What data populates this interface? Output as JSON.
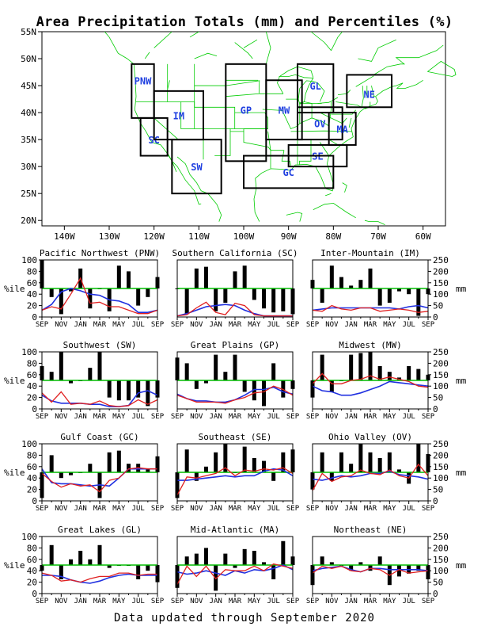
{
  "title": "Area Precipitation Totals (mm) and Percentiles (%)",
  "footer": "Data updated through September 2020",
  "map": {
    "lat_ticks": [
      "55N",
      "50N",
      "45N",
      "40N",
      "35N",
      "30N",
      "25N",
      "20N"
    ],
    "lon_ticks": [
      "140W",
      "130W",
      "120W",
      "110W",
      "100W",
      "90W",
      "80W",
      "70W",
      "60W"
    ],
    "regions": [
      {
        "code": "PNW",
        "lonmin": -125,
        "lonmax": -120,
        "latmin": 39,
        "latmax": 49,
        "lablon": -122.5,
        "lablat": 46
      },
      {
        "code": "SC",
        "lonmin": -123,
        "lonmax": -117,
        "latmin": 32,
        "latmax": 39,
        "lablon": -120,
        "lablat": 35
      },
      {
        "code": "IM",
        "lonmin": -120,
        "lonmax": -109,
        "latmin": 35,
        "latmax": 44,
        "lablon": -114.5,
        "lablat": 39.5
      },
      {
        "code": "SW",
        "lonmin": -116,
        "lonmax": -105,
        "latmin": 25,
        "latmax": 35,
        "lablon": -110.5,
        "lablat": 30
      },
      {
        "code": "GP",
        "lonmin": -104,
        "lonmax": -95,
        "latmin": 31,
        "latmax": 49,
        "lablon": -99.5,
        "lablat": 40.5
      },
      {
        "code": "MW",
        "lonmin": -95,
        "lonmax": -87,
        "latmin": 35,
        "latmax": 46,
        "lablon": -91,
        "lablat": 40.5
      },
      {
        "code": "GL",
        "lonmin": -88,
        "lonmax": -80,
        "latmin": 40,
        "latmax": 49,
        "lablon": -84,
        "lablat": 45
      },
      {
        "code": "NE",
        "lonmin": -77,
        "lonmax": -67,
        "latmin": 41,
        "latmax": 47,
        "lablon": -72,
        "lablat": 43.5
      },
      {
        "code": "OV",
        "lonmin": -88,
        "lonmax": -78,
        "latmin": 35,
        "latmax": 41,
        "lablon": -83,
        "lablat": 38
      },
      {
        "code": "MA",
        "lonmin": -81,
        "lonmax": -75,
        "latmin": 34,
        "latmax": 40,
        "lablon": -78,
        "lablat": 37
      },
      {
        "code": "SE",
        "lonmin": -90,
        "lonmax": -77,
        "latmin": 30,
        "latmax": 34,
        "lablon": -83.5,
        "lablat": 32
      },
      {
        "code": "GC",
        "lonmin": -100,
        "lonmax": -80,
        "latmin": 26,
        "latmax": 32,
        "lablon": -90,
        "lablat": 29
      }
    ]
  },
  "axes": {
    "left_label": "%ile",
    "right_label": "mm",
    "pct_ticks": [
      "0",
      "20",
      "40",
      "60",
      "80",
      "100"
    ],
    "mm_ticks": [
      "0",
      "50",
      "100",
      "150",
      "200",
      "250"
    ],
    "month_ticks": [
      "SEP",
      "NOV",
      "JAN",
      "MAR",
      "MAY",
      "JUL",
      "SEP"
    ]
  },
  "colors": {
    "bars": "#000000",
    "percentile_line": "#2030e0",
    "total_line": "#e02020",
    "median_line": "#00bb00",
    "map_lines": "#00cc00",
    "region_labels": "#2040e0"
  },
  "chart_data": [
    {
      "type": "bar",
      "title": "Pacific Northwest (PNW)",
      "pct_range": [
        0,
        100
      ],
      "mm_range": [
        0,
        250
      ],
      "x": [
        "SEP",
        "OCT",
        "NOV",
        "DEC",
        "JAN",
        "FEB",
        "MAR",
        "APR",
        "MAY",
        "JUN",
        "JUL",
        "AUG",
        "SEP"
      ],
      "percentiles": [
        100,
        35,
        5,
        45,
        85,
        15,
        50,
        10,
        90,
        80,
        20,
        35,
        70
      ],
      "totals_mm": [
        30,
        45,
        35,
        100,
        170,
        60,
        65,
        45,
        45,
        30,
        15,
        15,
        30
      ],
      "normal_mm": [
        30,
        55,
        110,
        125,
        115,
        100,
        95,
        75,
        70,
        55,
        20,
        20,
        30
      ]
    },
    {
      "type": "bar",
      "title": "Southern California (SC)",
      "pct_range": [
        0,
        100
      ],
      "mm_range": [
        0,
        250
      ],
      "x": [
        "SEP",
        "OCT",
        "NOV",
        "DEC",
        "JAN",
        "FEB",
        "MAR",
        "APR",
        "MAY",
        "JUN",
        "JUL",
        "AUG",
        "SEP"
      ],
      "percentiles": [
        50,
        5,
        85,
        88,
        10,
        25,
        80,
        90,
        30,
        15,
        8,
        10,
        5
      ],
      "totals_mm": [
        5,
        10,
        40,
        65,
        20,
        10,
        60,
        50,
        10,
        5,
        5,
        5,
        5
      ],
      "normal_mm": [
        5,
        15,
        30,
        45,
        50,
        55,
        50,
        30,
        15,
        5,
        5,
        5,
        5
      ]
    },
    {
      "type": "bar",
      "title": "Inter-Mountain (IM)",
      "pct_range": [
        0,
        100
      ],
      "mm_range": [
        0,
        250
      ],
      "x": [
        "SEP",
        "OCT",
        "NOV",
        "DEC",
        "JAN",
        "FEB",
        "MAR",
        "APR",
        "MAY",
        "JUN",
        "JUL",
        "AUG",
        "SEP"
      ],
      "percentiles": [
        65,
        25,
        90,
        70,
        55,
        65,
        85,
        20,
        25,
        45,
        40,
        2,
        40
      ],
      "totals_mm": [
        30,
        25,
        50,
        35,
        30,
        40,
        40,
        25,
        30,
        35,
        30,
        20,
        25
      ],
      "normal_mm": [
        30,
        35,
        40,
        40,
        40,
        40,
        40,
        40,
        40,
        35,
        45,
        50,
        40
      ]
    },
    {
      "type": "bar",
      "title": "Southwest (SW)",
      "pct_range": [
        0,
        100
      ],
      "mm_range": [
        0,
        250
      ],
      "x": [
        "SEP",
        "OCT",
        "NOV",
        "DEC",
        "JAN",
        "FEB",
        "MAR",
        "APR",
        "MAY",
        "JUN",
        "JUL",
        "AUG",
        "SEP"
      ],
      "percentiles": [
        75,
        65,
        100,
        45,
        50,
        72,
        100,
        20,
        15,
        15,
        20,
        5,
        20
      ],
      "totals_mm": [
        70,
        30,
        75,
        20,
        25,
        20,
        35,
        15,
        10,
        15,
        40,
        20,
        40
      ],
      "normal_mm": [
        60,
        35,
        25,
        25,
        25,
        20,
        20,
        10,
        10,
        15,
        70,
        80,
        60
      ]
    },
    {
      "type": "bar",
      "title": "Great Plains (GP)",
      "pct_range": [
        0,
        100
      ],
      "mm_range": [
        0,
        250
      ],
      "x": [
        "SEP",
        "OCT",
        "NOV",
        "DEC",
        "JAN",
        "FEB",
        "MAR",
        "APR",
        "MAY",
        "JUN",
        "JUL",
        "AUG",
        "SEP"
      ],
      "percentiles": [
        90,
        80,
        35,
        45,
        95,
        65,
        95,
        30,
        15,
        5,
        80,
        20,
        35
      ],
      "totals_mm": [
        60,
        45,
        30,
        30,
        30,
        25,
        40,
        50,
        70,
        75,
        100,
        85,
        60
      ],
      "normal_mm": [
        65,
        45,
        35,
        35,
        30,
        30,
        40,
        60,
        85,
        85,
        95,
        75,
        65
      ]
    },
    {
      "type": "bar",
      "title": "Midwest (MW)",
      "pct_range": [
        0,
        100
      ],
      "mm_range": [
        0,
        250
      ],
      "x": [
        "SEP",
        "OCT",
        "NOV",
        "DEC",
        "JAN",
        "FEB",
        "MAR",
        "APR",
        "MAY",
        "JUN",
        "JUL",
        "AUG",
        "SEP"
      ],
      "percentiles": [
        20,
        95,
        30,
        50,
        95,
        98,
        100,
        75,
        65,
        55,
        75,
        70,
        60
      ],
      "totals_mm": [
        110,
        155,
        110,
        110,
        125,
        130,
        145,
        130,
        140,
        130,
        120,
        100,
        95
      ],
      "normal_mm": [
        100,
        80,
        75,
        60,
        60,
        70,
        85,
        100,
        120,
        115,
        110,
        105,
        100
      ]
    },
    {
      "type": "bar",
      "title": "Gulf Coast (GC)",
      "pct_range": [
        0,
        100
      ],
      "mm_range": [
        0,
        250
      ],
      "x": [
        "SEP",
        "OCT",
        "NOV",
        "DEC",
        "JAN",
        "FEB",
        "MAR",
        "APR",
        "MAY",
        "JUN",
        "JUL",
        "AUG",
        "SEP"
      ],
      "percentiles": [
        5,
        80,
        40,
        45,
        50,
        65,
        5,
        85,
        88,
        65,
        65,
        55,
        78
      ],
      "totals_mm": [
        120,
        85,
        60,
        75,
        65,
        70,
        40,
        90,
        100,
        140,
        145,
        140,
        140
      ],
      "normal_mm": [
        140,
        80,
        75,
        75,
        70,
        65,
        70,
        65,
        100,
        140,
        140,
        140,
        140
      ]
    },
    {
      "type": "bar",
      "title": "Southeast (SE)",
      "pct_range": [
        0,
        100
      ],
      "mm_range": [
        0,
        250
      ],
      "x": [
        "SEP",
        "OCT",
        "NOV",
        "DEC",
        "JAN",
        "FEB",
        "MAR",
        "APR",
        "MAY",
        "JUN",
        "JUL",
        "AUG",
        "SEP"
      ],
      "percentiles": [
        5,
        90,
        35,
        60,
        85,
        100,
        50,
        95,
        75,
        70,
        35,
        85,
        90
      ],
      "totals_mm": [
        25,
        105,
        100,
        110,
        120,
        145,
        110,
        135,
        130,
        140,
        135,
        145,
        120
      ],
      "normal_mm": [
        90,
        90,
        95,
        100,
        105,
        110,
        105,
        110,
        110,
        130,
        140,
        135,
        110
      ]
    },
    {
      "type": "bar",
      "title": "Ohio Valley (OV)",
      "pct_range": [
        0,
        100
      ],
      "mm_range": [
        0,
        250
      ],
      "x": [
        "SEP",
        "OCT",
        "NOV",
        "DEC",
        "JAN",
        "FEB",
        "MAR",
        "APR",
        "MAY",
        "JUN",
        "JUL",
        "AUG",
        "SEP"
      ],
      "percentiles": [
        20,
        85,
        35,
        85,
        65,
        100,
        85,
        75,
        85,
        55,
        30,
        100,
        82
      ],
      "totals_mm": [
        45,
        120,
        85,
        105,
        110,
        135,
        120,
        115,
        135,
        110,
        100,
        160,
        110
      ],
      "normal_mm": [
        95,
        90,
        100,
        110,
        105,
        110,
        120,
        120,
        130,
        115,
        110,
        105,
        95
      ]
    },
    {
      "type": "bar",
      "title": "Great Lakes (GL)",
      "pct_range": [
        0,
        100
      ],
      "mm_range": [
        0,
        250
      ],
      "x": [
        "SEP",
        "OCT",
        "NOV",
        "DEC",
        "JAN",
        "FEB",
        "MAR",
        "APR",
        "MAY",
        "JUN",
        "JUL",
        "AUG",
        "SEP"
      ],
      "percentiles": [
        40,
        85,
        25,
        60,
        75,
        60,
        85,
        45,
        50,
        50,
        25,
        40,
        20
      ],
      "totals_mm": [
        90,
        80,
        55,
        60,
        50,
        65,
        75,
        75,
        90,
        90,
        80,
        85,
        85
      ],
      "normal_mm": [
        80,
        80,
        75,
        60,
        50,
        45,
        55,
        70,
        80,
        85,
        80,
        80,
        80
      ]
    },
    {
      "type": "bar",
      "title": "Mid-Atlantic (MA)",
      "pct_range": [
        0,
        100
      ],
      "mm_range": [
        0,
        250
      ],
      "x": [
        "SEP",
        "OCT",
        "NOV",
        "DEC",
        "JAN",
        "FEB",
        "MAR",
        "APR",
        "MAY",
        "JUN",
        "JUL",
        "AUG",
        "SEP"
      ],
      "percentiles": [
        10,
        65,
        70,
        80,
        5,
        70,
        45,
        78,
        75,
        55,
        25,
        92,
        65
      ],
      "totals_mm": [
        40,
        120,
        75,
        120,
        65,
        105,
        100,
        100,
        120,
        100,
        130,
        120,
        110
      ],
      "normal_mm": [
        95,
        85,
        90,
        100,
        90,
        80,
        100,
        90,
        105,
        100,
        110,
        125,
        105
      ]
    },
    {
      "type": "bar",
      "title": "Northeast (NE)",
      "pct_range": [
        0,
        100
      ],
      "mm_range": [
        0,
        250
      ],
      "x": [
        "SEP",
        "OCT",
        "NOV",
        "DEC",
        "JAN",
        "FEB",
        "MAR",
        "APR",
        "MAY",
        "JUN",
        "JUL",
        "AUG",
        "SEP"
      ],
      "percentiles": [
        15,
        65,
        55,
        50,
        40,
        55,
        40,
        65,
        15,
        30,
        35,
        40,
        25
      ],
      "totals_mm": [
        90,
        120,
        110,
        120,
        100,
        95,
        110,
        105,
        80,
        105,
        90,
        95,
        100
      ],
      "normal_mm": [
        100,
        110,
        115,
        120,
        105,
        95,
        110,
        110,
        105,
        105,
        105,
        105,
        100
      ]
    }
  ]
}
